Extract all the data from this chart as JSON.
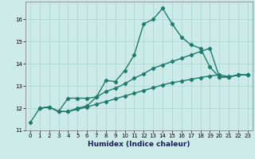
{
  "xlabel": "Humidex (Indice chaleur)",
  "bg_color": "#cceae8",
  "grid_color": "#aad4d0",
  "line_color": "#1e7b6e",
  "xlim_min": -0.5,
  "xlim_max": 23.5,
  "ylim_min": 11.0,
  "ylim_max": 16.8,
  "yticks": [
    11,
    12,
    13,
    14,
    15,
    16
  ],
  "xticks": [
    0,
    1,
    2,
    3,
    4,
    5,
    6,
    7,
    8,
    9,
    10,
    11,
    12,
    13,
    14,
    15,
    16,
    17,
    18,
    19,
    20,
    21,
    22,
    23
  ],
  "curve1_x": [
    0,
    1,
    2,
    3,
    4,
    5,
    6,
    7,
    8,
    9,
    10,
    11,
    12,
    13,
    14,
    15,
    16,
    17,
    18,
    19,
    20,
    21,
    22,
    23
  ],
  "curve1_y": [
    11.35,
    12.0,
    12.05,
    11.85,
    12.45,
    12.45,
    12.45,
    12.5,
    13.25,
    13.2,
    13.7,
    14.4,
    15.8,
    16.0,
    16.5,
    15.8,
    15.2,
    14.85,
    14.7,
    13.85,
    13.4,
    13.4,
    13.5,
    13.5
  ],
  "curve2_x": [
    1,
    2,
    3,
    4,
    5,
    6,
    7,
    8,
    9,
    10,
    11,
    12,
    13,
    14,
    15,
    16,
    17,
    18,
    19,
    20,
    21,
    22,
    23
  ],
  "curve2_y": [
    12.0,
    12.05,
    11.85,
    11.85,
    12.0,
    12.1,
    12.5,
    12.75,
    12.9,
    13.1,
    13.35,
    13.55,
    13.8,
    13.95,
    14.1,
    14.25,
    14.4,
    14.55,
    14.7,
    13.4,
    13.4,
    13.5,
    13.5
  ],
  "curve3_x": [
    1,
    2,
    3,
    4,
    5,
    6,
    7,
    8,
    9,
    10,
    11,
    12,
    13,
    14,
    15,
    16,
    17,
    18,
    19,
    20,
    21,
    22,
    23
  ],
  "curve3_y": [
    12.0,
    12.05,
    11.85,
    11.85,
    11.95,
    12.05,
    12.18,
    12.3,
    12.42,
    12.55,
    12.67,
    12.8,
    12.92,
    13.05,
    13.15,
    13.22,
    13.3,
    13.38,
    13.45,
    13.5,
    13.42,
    13.5,
    13.5
  ],
  "xlabel_fontsize": 6.5,
  "tick_fontsize": 5.0,
  "linewidth": 1.0,
  "markersize": 2.2
}
